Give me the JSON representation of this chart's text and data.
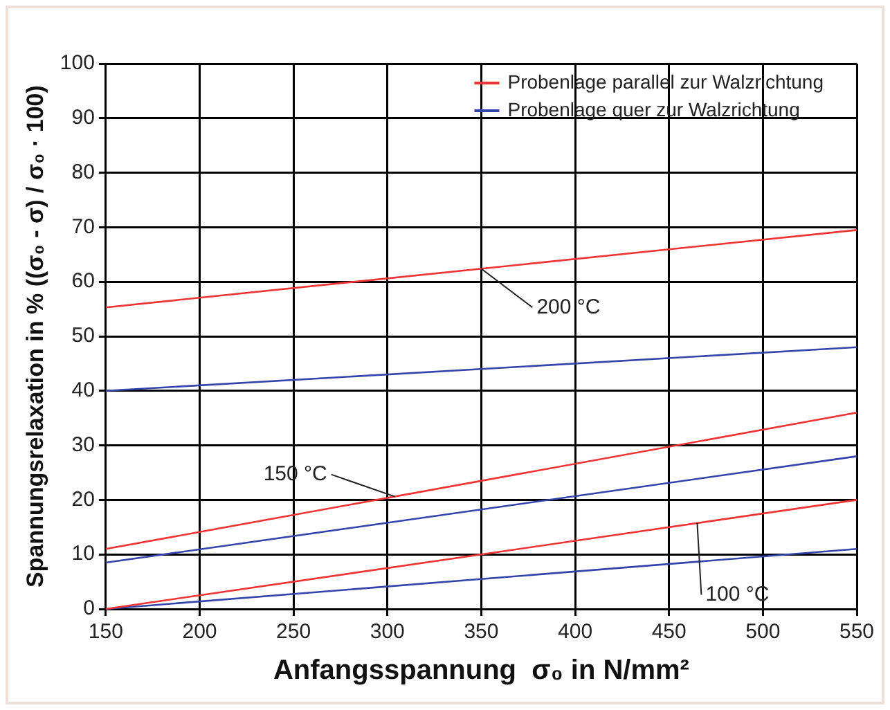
{
  "chart_data": {
    "type": "line",
    "xlabel": "Anfangsspannung  σ₀ in N/mm²",
    "ylabel": "Spannungsrelaxation in % ((σ₀ - σ) / σ₀ · 100)",
    "xlim": [
      150,
      550
    ],
    "xticks": [
      150,
      200,
      250,
      300,
      350,
      400,
      450,
      500,
      550
    ],
    "ylim": [
      0,
      100
    ],
    "yticks": [
      0,
      10,
      20,
      30,
      40,
      50,
      60,
      70,
      80,
      90,
      100
    ],
    "x": [
      150,
      550
    ],
    "grid": true,
    "legend": "top right",
    "marker": "none",
    "line_style": "solid",
    "series": [
      {
        "name": "Probenlage parallel zur Walzrichtung",
        "color": "#ee3333",
        "values": [
          55.3,
          69.5
        ]
      },
      {
        "name": "Probenlage quer zur Walzrichtung",
        "color": "#3344aa",
        "values": [
          40,
          48
        ]
      },
      {
        "color": "#ee3333",
        "values": [
          11,
          36
        ]
      },
      {
        "color": "#3344aa",
        "values": [
          8.5,
          28
        ]
      },
      {
        "color": "#ee3333",
        "values": [
          0,
          20
        ]
      },
      {
        "color": "#3344aa",
        "values": [
          0,
          11
        ]
      }
    ],
    "annotations": [
      {
        "text": "200 °C",
        "x": 350,
        "y": 62.4
      },
      {
        "text": "150 °C",
        "x": 304,
        "y": 20.6
      },
      {
        "text": "100 °C",
        "x": 465,
        "y": 15.8
      }
    ]
  }
}
